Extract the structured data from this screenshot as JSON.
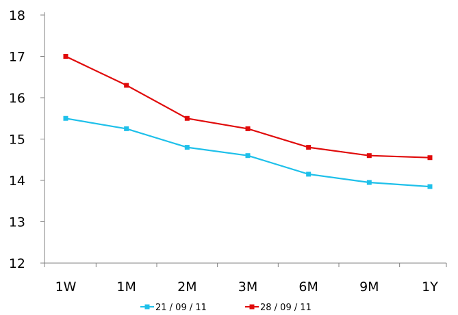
{
  "chart_data": {
    "type": "line",
    "title": "",
    "xlabel": "",
    "ylabel": "",
    "categories": [
      "1W",
      "1M",
      "2M",
      "3M",
      "6M",
      "9M",
      "1Y"
    ],
    "ylim": [
      12,
      18
    ],
    "yticks": [
      12,
      13,
      14,
      15,
      16,
      17,
      18
    ],
    "grid": false,
    "legend": "bottom",
    "series": [
      {
        "name": "21 / 09 / 11",
        "color": "#1EC0EA",
        "values": [
          15.5,
          15.25,
          14.8,
          14.6,
          14.15,
          13.95,
          13.85
        ]
      },
      {
        "name": "28 / 09 / 11",
        "color": "#E00A0A",
        "values": [
          17.0,
          16.3,
          15.5,
          15.25,
          14.8,
          14.6,
          14.55
        ]
      }
    ]
  }
}
